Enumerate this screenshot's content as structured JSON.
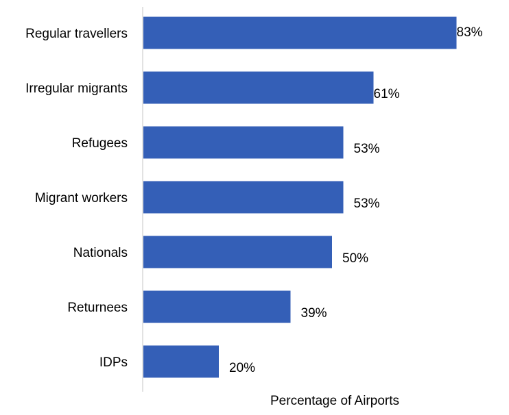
{
  "chart_data": {
    "type": "bar",
    "orientation": "horizontal",
    "categories": [
      "Regular travellers",
      "Irregular migrants",
      "Refugees",
      "Migrant workers",
      "Nationals",
      "Returnees",
      "IDPs"
    ],
    "values": [
      83,
      61,
      53,
      53,
      50,
      39,
      20
    ],
    "value_labels": [
      "83%",
      "61%",
      "53%",
      "53%",
      "50%",
      "39%",
      "20%"
    ],
    "title": "",
    "xlabel": "Percentage of Airports",
    "ylabel": "",
    "xlim": [
      0,
      100
    ],
    "grid": false,
    "legend": "none",
    "bar_color": "#345FB7"
  }
}
